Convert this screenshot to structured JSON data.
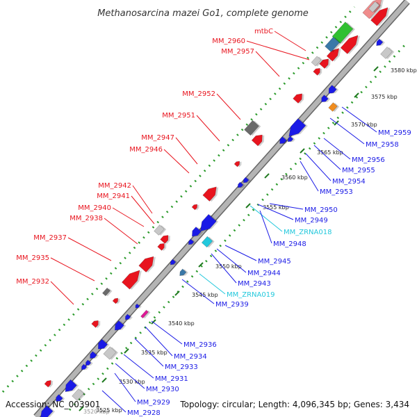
{
  "title": "Methanosarcina mazei Go1, complete genome",
  "footer": {
    "accession": "Accession: NC_003901",
    "summary": "Topology: circular; Length: 4,096,345 bp; Genes: 3,434"
  },
  "colors": {
    "forward": "#e8141e",
    "reverse": "#1a1ae6",
    "ncrna": "#22c8dc",
    "backbone": "#a8a8a8",
    "dots": "#2a9a2a",
    "tick": "#207a20"
  },
  "ticks": [
    "3520 kbp",
    "3525 kbp",
    "3530 kbp",
    "3535 kbp",
    "3540 kbp",
    "3545 kbp",
    "3550 kbp",
    "3555 kbp",
    "3560 kbp",
    "3565 kbp",
    "3570 kbp",
    "3575 kbp",
    "3580 kbp"
  ],
  "forward_labels": [
    "mtbC",
    "MM_2960",
    "MM_2957",
    "MM_2952",
    "MM_2951",
    "MM_2947",
    "MM_2946",
    "MM_2942",
    "MM_2941",
    "MM_2940",
    "MM_2938",
    "MM_2937",
    "MM_2935",
    "MM_2932"
  ],
  "reverse_labels": [
    "MM_2959",
    "MM_2958",
    "MM_2956",
    "MM_2955",
    "MM_2954",
    "MM_2953",
    "MM_2950",
    "MM_2949",
    "MM_ZRNA018",
    "MM_2948",
    "MM_2945",
    "MM_2944",
    "MM_2943",
    "MM_ZRNA019",
    "MM_2939",
    "MM_2936",
    "MM_2934",
    "MM_2933",
    "MM_2931",
    "MM_2930",
    "MM_2929",
    "MM_2928"
  ]
}
